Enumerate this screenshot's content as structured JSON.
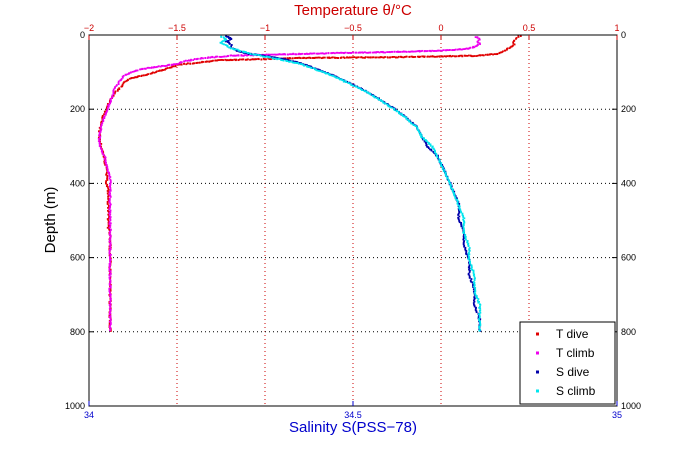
{
  "chart_data": {
    "type": "scatter",
    "title": "",
    "xlabel_bottom": "Salinity S(PSS−78)",
    "xlabel_top": "Temperature θ/°C",
    "ylabel": "Depth (m)",
    "x_bottom_range": [
      34,
      35
    ],
    "x_top_range": [
      -2,
      1
    ],
    "y_range": [
      0,
      1000
    ],
    "y_reversed": true,
    "x_bottom_ticks": [
      "34",
      "34.5",
      "35"
    ],
    "x_bottom_tick_values": [
      34,
      34.5,
      35
    ],
    "x_top_ticks": [
      "−2",
      "−1.5",
      "−1",
      "−0.5",
      "0",
      "0.5",
      "1"
    ],
    "x_top_tick_values": [
      -2,
      -1.5,
      -1,
      -0.5,
      0,
      0.5,
      1
    ],
    "y_ticks": [
      "0",
      "200",
      "400",
      "600",
      "800",
      "1000"
    ],
    "y_tick_values": [
      0,
      200,
      400,
      600,
      800,
      1000
    ],
    "vertical_gridlines_axis": "top",
    "vertical_gridline_values": [
      -1.5,
      -1,
      -0.5,
      0,
      0.5
    ],
    "horizontal_gridline_values": [
      200,
      400,
      600,
      800
    ],
    "grid": true,
    "legend_position": "bottom-right",
    "colors": {
      "T dive": "#e00000",
      "T climb": "#ee00ee",
      "S dive": "#0000aa",
      "S climb": "#00e5ee",
      "temperature_axis": "#cc0000",
      "salinity_axis": "#0000cc"
    },
    "series": [
      {
        "name": "T dive",
        "axis": "top",
        "points": [
          [
            0.45,
            2
          ],
          [
            0.43,
            8
          ],
          [
            0.42,
            14
          ],
          [
            0.41,
            20
          ],
          [
            0.42,
            26
          ],
          [
            0.4,
            32
          ],
          [
            0.37,
            40
          ],
          [
            0.33,
            50
          ],
          [
            0.2,
            56
          ],
          [
            -0.3,
            60
          ],
          [
            -0.8,
            62
          ],
          [
            -1.25,
            68
          ],
          [
            -1.49,
            80
          ],
          [
            -1.55,
            90
          ],
          [
            -1.62,
            100
          ],
          [
            -1.7,
            110
          ],
          [
            -1.77,
            118
          ],
          [
            -1.8,
            128
          ],
          [
            -1.82,
            140
          ],
          [
            -1.85,
            155
          ],
          [
            -1.87,
            170
          ],
          [
            -1.89,
            185
          ],
          [
            -1.9,
            200
          ],
          [
            -1.92,
            220
          ],
          [
            -1.93,
            240
          ],
          [
            -1.94,
            260
          ],
          [
            -1.94,
            280
          ],
          [
            -1.93,
            300
          ],
          [
            -1.92,
            320
          ],
          [
            -1.91,
            340
          ],
          [
            -1.9,
            360
          ],
          [
            -1.9,
            380
          ],
          [
            -1.9,
            400
          ],
          [
            -1.89,
            420
          ],
          [
            -1.89,
            440
          ],
          [
            -1.89,
            460
          ],
          [
            -1.89,
            480
          ],
          [
            -1.89,
            500
          ],
          [
            -1.89,
            520
          ],
          [
            -1.88,
            540
          ],
          [
            -1.88,
            560
          ],
          [
            -1.88,
            580
          ],
          [
            -1.88,
            600
          ],
          [
            -1.88,
            640
          ],
          [
            -1.88,
            680
          ],
          [
            -1.88,
            720
          ],
          [
            -1.88,
            760
          ],
          [
            -1.88,
            800
          ]
        ]
      },
      {
        "name": "T climb",
        "axis": "top",
        "points": [
          [
            0.2,
            5
          ],
          [
            0.22,
            12
          ],
          [
            0.21,
            18
          ],
          [
            0.22,
            25
          ],
          [
            0.19,
            32
          ],
          [
            0.14,
            38
          ],
          [
            0.0,
            42
          ],
          [
            -0.2,
            45
          ],
          [
            -0.5,
            48
          ],
          [
            -0.9,
            52
          ],
          [
            -1.2,
            56
          ],
          [
            -1.35,
            62
          ],
          [
            -1.45,
            70
          ],
          [
            -1.5,
            78
          ],
          [
            -1.6,
            85
          ],
          [
            -1.7,
            92
          ],
          [
            -1.76,
            100
          ],
          [
            -1.8,
            110
          ],
          [
            -1.82,
            120
          ],
          [
            -1.84,
            135
          ],
          [
            -1.86,
            150
          ],
          [
            -1.87,
            170
          ],
          [
            -1.89,
            190
          ],
          [
            -1.9,
            210
          ],
          [
            -1.92,
            230
          ],
          [
            -1.93,
            250
          ],
          [
            -1.94,
            270
          ],
          [
            -1.94,
            290
          ],
          [
            -1.93,
            310
          ],
          [
            -1.91,
            330
          ],
          [
            -1.9,
            350
          ],
          [
            -1.89,
            370
          ],
          [
            -1.88,
            390
          ],
          [
            -1.88,
            410
          ],
          [
            -1.88,
            430
          ],
          [
            -1.88,
            450
          ],
          [
            -1.88,
            470
          ],
          [
            -1.88,
            490
          ],
          [
            -1.88,
            510
          ],
          [
            -1.88,
            530
          ],
          [
            -1.88,
            560
          ],
          [
            -1.88,
            590
          ],
          [
            -1.88,
            620
          ],
          [
            -1.88,
            650
          ],
          [
            -1.88,
            680
          ],
          [
            -1.88,
            710
          ],
          [
            -1.88,
            740
          ],
          [
            -1.88,
            770
          ],
          [
            -1.88,
            800
          ]
        ]
      },
      {
        "name": "S dive",
        "axis": "bottom",
        "points": [
          [
            34.26,
            3
          ],
          [
            34.27,
            10
          ],
          [
            34.26,
            18
          ],
          [
            34.27,
            26
          ],
          [
            34.27,
            34
          ],
          [
            34.28,
            42
          ],
          [
            34.3,
            50
          ],
          [
            34.34,
            58
          ],
          [
            34.37,
            66
          ],
          [
            34.4,
            76
          ],
          [
            34.42,
            86
          ],
          [
            34.44,
            96
          ],
          [
            34.46,
            108
          ],
          [
            34.48,
            120
          ],
          [
            34.5,
            134
          ],
          [
            34.52,
            148
          ],
          [
            34.54,
            164
          ],
          [
            34.56,
            182
          ],
          [
            34.58,
            200
          ],
          [
            34.6,
            222
          ],
          [
            34.62,
            246
          ],
          [
            34.63,
            272
          ],
          [
            34.64,
            298
          ],
          [
            34.66,
            326
          ],
          [
            34.67,
            356
          ],
          [
            34.68,
            388
          ],
          [
            34.69,
            420
          ],
          [
            34.7,
            456
          ],
          [
            34.7,
            492
          ],
          [
            34.71,
            530
          ],
          [
            34.71,
            568
          ],
          [
            34.72,
            606
          ],
          [
            34.72,
            646
          ],
          [
            34.73,
            686
          ],
          [
            34.73,
            726
          ],
          [
            34.74,
            766
          ],
          [
            34.74,
            800
          ]
        ]
      },
      {
        "name": "S climb",
        "axis": "bottom",
        "points": [
          [
            34.25,
            4
          ],
          [
            34.26,
            12
          ],
          [
            34.25,
            20
          ],
          [
            34.26,
            28
          ],
          [
            34.27,
            36
          ],
          [
            34.29,
            44
          ],
          [
            34.31,
            52
          ],
          [
            34.34,
            60
          ],
          [
            34.37,
            68
          ],
          [
            34.4,
            78
          ],
          [
            34.42,
            88
          ],
          [
            34.44,
            98
          ],
          [
            34.46,
            110
          ],
          [
            34.48,
            122
          ],
          [
            34.5,
            136
          ],
          [
            34.52,
            150
          ],
          [
            34.54,
            166
          ],
          [
            34.56,
            184
          ],
          [
            34.58,
            202
          ],
          [
            34.6,
            224
          ],
          [
            34.62,
            248
          ],
          [
            34.63,
            274
          ],
          [
            34.65,
            300
          ],
          [
            34.66,
            328
          ],
          [
            34.67,
            358
          ],
          [
            34.68,
            390
          ],
          [
            34.69,
            422
          ],
          [
            34.7,
            458
          ],
          [
            34.71,
            494
          ],
          [
            34.71,
            532
          ],
          [
            34.72,
            570
          ],
          [
            34.72,
            608
          ],
          [
            34.73,
            648
          ],
          [
            34.73,
            688
          ],
          [
            34.74,
            728
          ],
          [
            34.74,
            768
          ],
          [
            34.74,
            800
          ]
        ]
      }
    ],
    "legend": [
      "T dive",
      "T climb",
      "S dive",
      "S climb"
    ]
  }
}
